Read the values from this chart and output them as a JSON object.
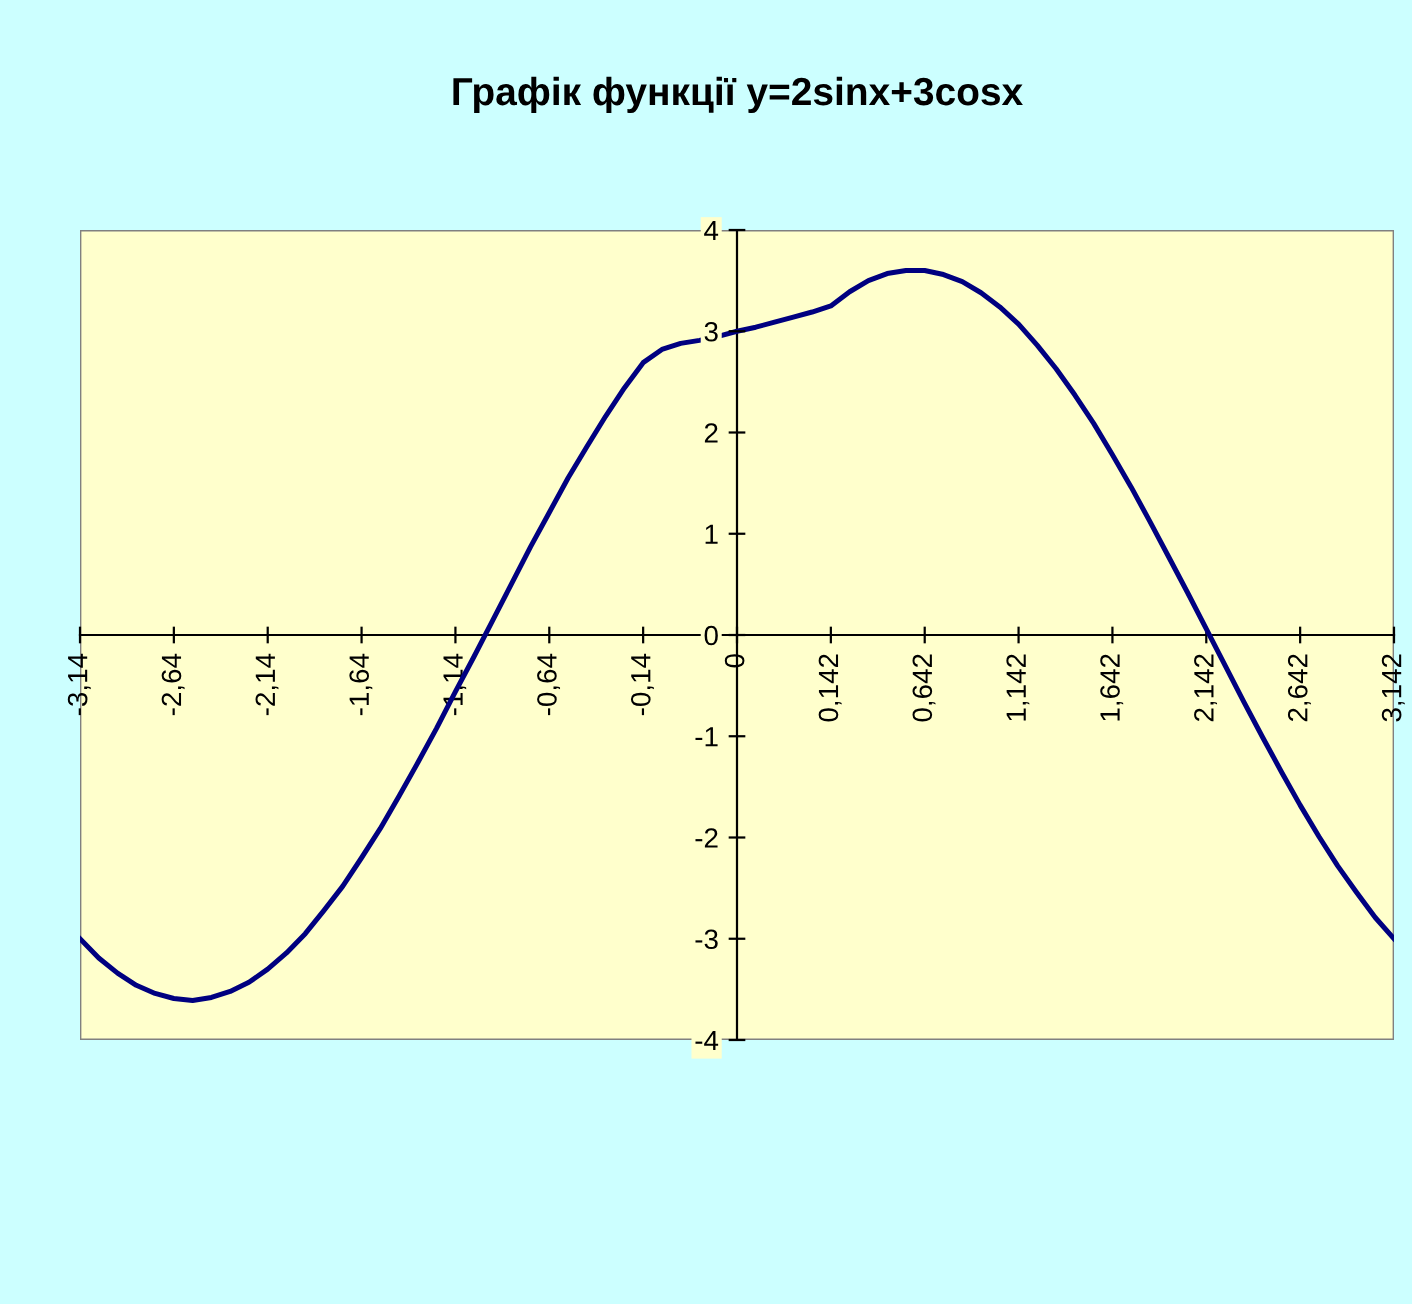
{
  "chart_data": {
    "type": "line",
    "title": "Графік функції y=2sinx+3cosx",
    "categories": [
      "-3,14",
      null,
      null,
      null,
      null,
      "-2,64",
      null,
      null,
      null,
      null,
      "-2,14",
      null,
      null,
      null,
      null,
      "-1,64",
      null,
      null,
      null,
      null,
      "-1,14",
      null,
      null,
      null,
      null,
      "-0,64",
      null,
      null,
      null,
      null,
      "-0,14",
      null,
      null,
      null,
      null,
      "0",
      null,
      null,
      null,
      null,
      "0,142",
      null,
      null,
      null,
      null,
      "0,642",
      null,
      null,
      null,
      null,
      "1,142",
      null,
      null,
      null,
      null,
      "1,642",
      null,
      null,
      null,
      null,
      "2,142",
      null,
      null,
      null,
      null,
      "2,642",
      null,
      null,
      null,
      null,
      "3,142"
    ],
    "series": [
      {
        "color": "#000080",
        "values": [
          -3.0,
          -3.19,
          -3.34,
          -3.46,
          -3.54,
          -3.59,
          -3.61,
          -3.58,
          -3.52,
          -3.43,
          -3.3,
          -3.14,
          -2.95,
          -2.72,
          -2.48,
          -2.2,
          -1.91,
          -1.59,
          -1.26,
          -0.92,
          -0.56,
          -0.21,
          0.15,
          0.51,
          0.87,
          1.21,
          1.55,
          1.86,
          2.16,
          2.44,
          2.69,
          2.82,
          2.88,
          2.91,
          2.95,
          3.0,
          3.04,
          3.09,
          3.14,
          3.19,
          3.25,
          3.39,
          3.5,
          3.57,
          3.6,
          3.6,
          3.56,
          3.49,
          3.38,
          3.24,
          3.07,
          2.86,
          2.63,
          2.37,
          2.09,
          1.78,
          1.46,
          1.12,
          0.77,
          0.42,
          0.06,
          -0.3,
          -0.66,
          -1.01,
          -1.35,
          -1.68,
          -1.99,
          -2.28,
          -2.54,
          -2.79,
          -3.0
        ]
      }
    ],
    "ylim": [
      -4,
      4
    ],
    "yticks": [
      -4,
      -3,
      -2,
      -1,
      0,
      1,
      2,
      3,
      4
    ],
    "grid": false,
    "legend": false
  }
}
